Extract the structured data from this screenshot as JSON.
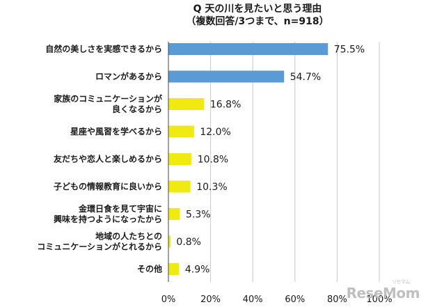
{
  "chart_data": {
    "type": "bar",
    "orientation": "horizontal",
    "title": "Q 天の川を見たいと思う理由",
    "subtitle": "（複数回答/3つまで、n=918）",
    "categories": [
      [
        "自然の美しさを実感できるから"
      ],
      [
        "ロマンがあるから"
      ],
      [
        "家族のコミュニケーションが",
        "良くなるから"
      ],
      [
        "星座や風習を学べるから"
      ],
      [
        "友だちや恋人と楽しめるから"
      ],
      [
        "子どもの情報教育に良いから"
      ],
      [
        "金環日食を見て宇宙に",
        "興味を持つようになったから"
      ],
      [
        "地域の人たちとの",
        "コミュニケーションがとれるから"
      ],
      [
        "その他"
      ]
    ],
    "values": [
      75.5,
      54.7,
      16.8,
      12.0,
      10.8,
      10.3,
      5.3,
      0.8,
      4.9
    ],
    "value_labels": [
      "75.5%",
      "54.7%",
      "16.8%",
      "12.0%",
      "10.8%",
      "10.3%",
      "5.3%",
      "0.8%",
      "4.9%"
    ],
    "xlim": [
      0,
      100
    ],
    "x_ticks": [
      "0%",
      "20%",
      "40%",
      "60%",
      "80%",
      "100%"
    ],
    "grid": true,
    "colors": {
      "highlight": "#5b9bd5",
      "default": "#f0ea12",
      "grid": "#c8c8c8",
      "axis": "#444444"
    },
    "highlight_indices": [
      0,
      1
    ]
  },
  "watermark": {
    "text": "ResеMom",
    "sub": "リセマム"
  }
}
